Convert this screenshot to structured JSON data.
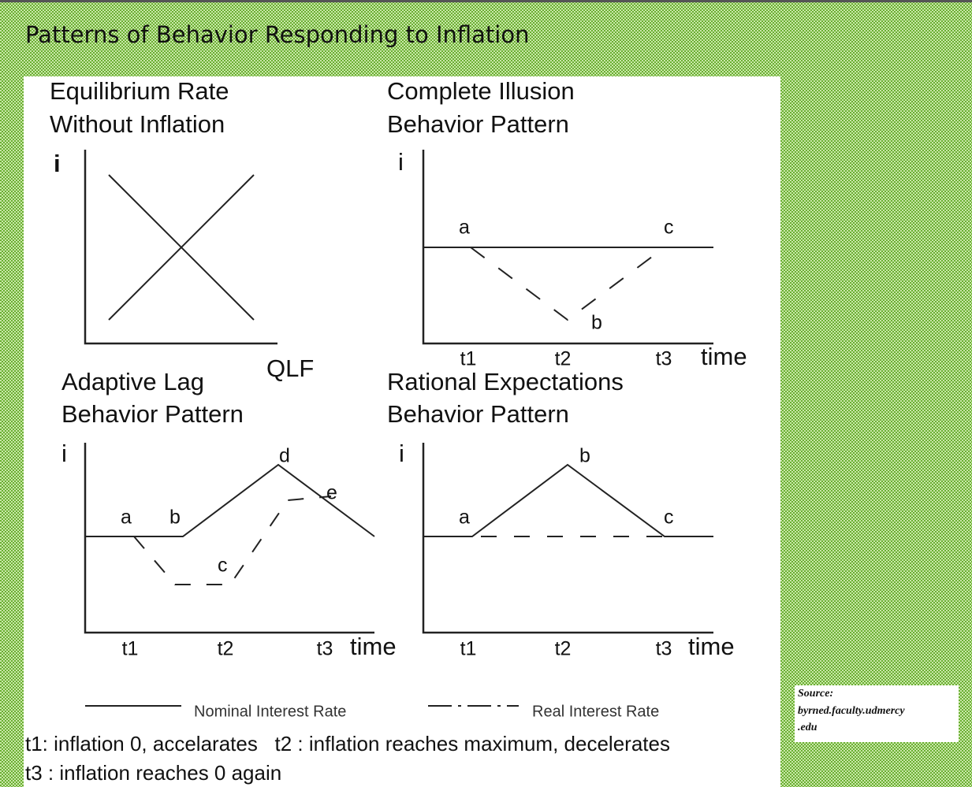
{
  "title": "Patterns of Behavior Responding to Inflation",
  "panels": [
    {
      "title": [
        "Equilibrium Rate",
        "Without Inflation"
      ],
      "y_axis": "i",
      "x_axis": "QLF"
    },
    {
      "title": [
        "Complete Illusion",
        "Behavior Pattern"
      ],
      "y_axis": "i",
      "points": [
        "a",
        "b",
        "c"
      ],
      "x_ticks": [
        "t1",
        "t2",
        "t3"
      ],
      "x_axis": "time"
    },
    {
      "title": [
        "Adaptive Lag",
        "Behavior Pattern"
      ],
      "y_axis": "i",
      "points": [
        "a",
        "b",
        "c",
        "d",
        "e"
      ],
      "x_ticks": [
        "t1",
        "t2",
        "t3"
      ],
      "x_axis": "time"
    },
    {
      "title": [
        "Rational Expectations",
        "Behavior Pattern"
      ],
      "y_axis": "i",
      "points": [
        "a",
        "b",
        "c"
      ],
      "x_ticks": [
        "t1",
        "t2",
        "t3"
      ],
      "x_axis": "time"
    }
  ],
  "legend": [
    "Nominal Interest Rate",
    "Real Interest Rate"
  ],
  "notes": [
    "t1: inflation 0, accelarates   t2 : inflation reaches maximum, decelerates",
    "t3 : inflation reaches 0 again"
  ],
  "source": [
    "Source:",
    "byrned.faculty.udmercy",
    ".edu"
  ]
}
